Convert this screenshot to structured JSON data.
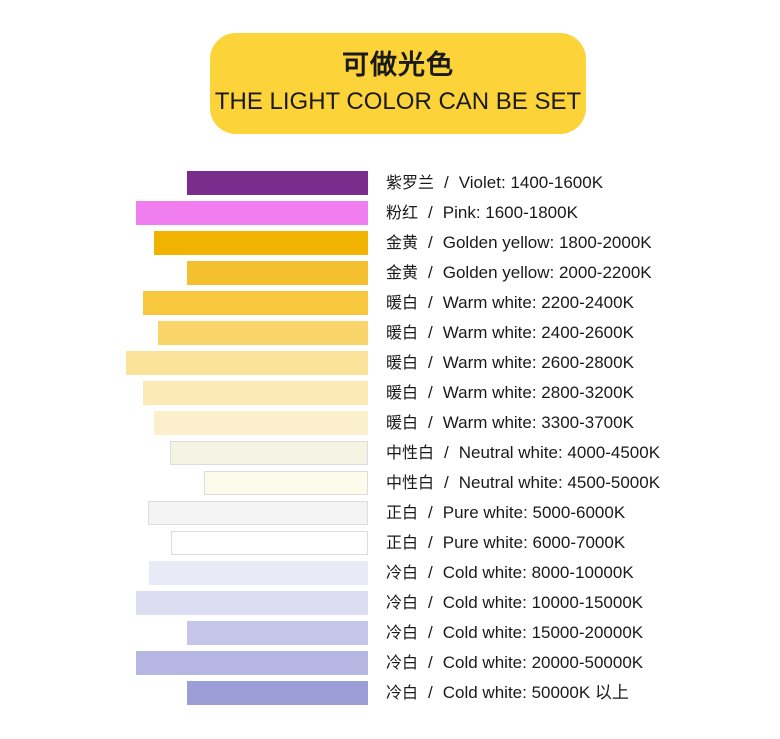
{
  "header": {
    "title_cn": "可做光色",
    "title_en": "THE LIGHT COLOR CAN BE SET"
  },
  "separator": "/",
  "rows": [
    {
      "cn": "紫罗兰",
      "en": "Violet: 1400-1600K",
      "color": "#7b2d8e"
    },
    {
      "cn": "粉红",
      "en": "Pink: 1600-1800K",
      "color": "#f07ef0"
    },
    {
      "cn": "金黄",
      "en": "Golden yellow: 1800-2000K",
      "color": "#f0b400"
    },
    {
      "cn": "金黄",
      "en": "Golden yellow: 2000-2200K",
      "color": "#f5c030"
    },
    {
      "cn": "暖白",
      "en": "Warm white: 2200-2400K",
      "color": "#f7c73e"
    },
    {
      "cn": "暖白",
      "en": "Warm white: 2400-2600K",
      "color": "#f9d46a"
    },
    {
      "cn": "暖白",
      "en": "Warm white: 2600-2800K",
      "color": "#fbe29a"
    },
    {
      "cn": "暖白",
      "en": "Warm white: 2800-3200K",
      "color": "#fbe9b6"
    },
    {
      "cn": "暖白",
      "en": "Warm white: 3300-3700K",
      "color": "#fcefcc"
    },
    {
      "cn": "中性白",
      "en": "Neutral white: 4000-4500K",
      "color": "#f4f3e4"
    },
    {
      "cn": "中性白",
      "en": "Neutral white: 4500-5000K",
      "color": "#fcfbec"
    },
    {
      "cn": "正白",
      "en": "Pure white: 5000-6000K",
      "color": "#f4f4f4"
    },
    {
      "cn": "正白",
      "en": "Pure white: 6000-7000K",
      "color": "#ffffff"
    },
    {
      "cn": "冷白",
      "en": "Cold white: 8000-10000K",
      "color": "#eaeaf6"
    },
    {
      "cn": "冷白",
      "en": "Cold white: 10000-15000K",
      "color": "#dcdcf2"
    },
    {
      "cn": "冷白",
      "en": "Cold white: 15000-20000K",
      "color": "#c5c5ea"
    },
    {
      "cn": "冷白",
      "en": "Cold white: 20000-50000K",
      "color": "#b7b7e3"
    },
    {
      "cn": "冷白",
      "en": "Cold white: 50000K 以上",
      "color": "#9d9dd8"
    }
  ]
}
